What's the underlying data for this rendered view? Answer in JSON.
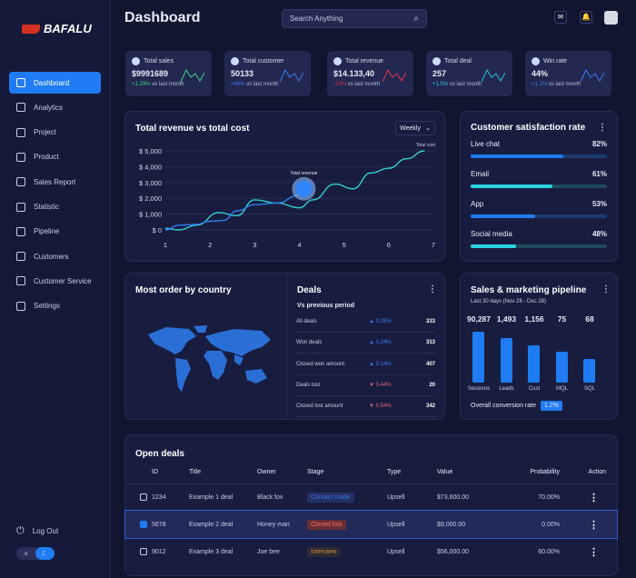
{
  "brand": "BAFALU",
  "sidebar": {
    "items": [
      {
        "label": "Dashboard",
        "icon": "home-icon"
      },
      {
        "label": "Analytics",
        "icon": "analytics-icon"
      },
      {
        "label": "Project",
        "icon": "project-icon"
      },
      {
        "label": "Product",
        "icon": "product-icon"
      },
      {
        "label": "Sales Report",
        "icon": "report-icon"
      },
      {
        "label": "Statistic",
        "icon": "statistic-icon"
      },
      {
        "label": "Pipeline",
        "icon": "pipeline-icon"
      },
      {
        "label": "Customers",
        "icon": "customers-icon"
      },
      {
        "label": "Customer Service",
        "icon": "service-icon"
      },
      {
        "label": "Settings",
        "icon": "settings-icon"
      }
    ],
    "logout": "Log Out",
    "theme": "dark"
  },
  "header": {
    "title": "Dashboard",
    "search_placeholder": "Search Anything"
  },
  "stats": [
    {
      "label": "Total sales",
      "value": "$9991689",
      "change": "+1.29%",
      "suffix": "vs last month",
      "color": "#3ecf8e"
    },
    {
      "label": "Total customer",
      "value": "50133",
      "change": "+45%",
      "suffix": "vs last month",
      "color": "#3b7bf0"
    },
    {
      "label": "Total revenue",
      "value": "$14.133,40",
      "change": "-10%",
      "suffix": "vs last month",
      "color": "#e0344a"
    },
    {
      "label": "Total deal",
      "value": "257",
      "change": "+1.5%",
      "suffix": "vs last month",
      "color": "#2bc6d6"
    },
    {
      "label": "Win rate",
      "value": "44%",
      "change": "+1.2%",
      "suffix": "vs last month",
      "color": "#3b7bf0"
    }
  ],
  "chart_data": {
    "type": "line",
    "title": "Total revenue vs total cost",
    "period": "Weekly",
    "ylim": [
      0,
      5000
    ],
    "yticks": [
      "$ 0",
      "$ 1,000",
      "$ 2,000",
      "$ 3,000",
      "$ 4,000",
      "$ 5,000"
    ],
    "xticks": [
      "1",
      "2",
      "3",
      "4",
      "5",
      "6",
      "7"
    ],
    "series": [
      {
        "name": "Total revenue",
        "color": "#2f7ff0",
        "x": [
          1,
          1.3,
          1.7,
          2,
          2.3,
          2.6,
          3,
          3.5,
          4,
          4.1
        ],
        "y": [
          0,
          300,
          350,
          550,
          600,
          1200,
          1600,
          1700,
          2200,
          2600
        ]
      },
      {
        "name": "Total cost",
        "color": "#35d0d0",
        "x": [
          1,
          1.3,
          1.7,
          2.2,
          2.6,
          3,
          3.5,
          4,
          4.3,
          4.8,
          5.2,
          5.6,
          6,
          6.4,
          6.8
        ],
        "y": [
          100,
          0,
          300,
          1100,
          900,
          1900,
          1700,
          1400,
          1900,
          2900,
          2600,
          3600,
          3900,
          4500,
          5000
        ]
      }
    ]
  },
  "satisfaction": {
    "title": "Customer satisfaction rate",
    "items": [
      {
        "label": "Live chat",
        "value": "82%",
        "fill": 0.68,
        "color": "#1f7cf2"
      },
      {
        "label": "Email",
        "value": "61%",
        "fill": 0.6,
        "color": "#2ad4e0"
      },
      {
        "label": "App",
        "value": "53%",
        "fill": 0.47,
        "color": "#1f7cf2"
      },
      {
        "label": "Social media",
        "value": "48%",
        "fill": 0.33,
        "color": "#2ad4e0"
      }
    ]
  },
  "map": {
    "title": "Most order by country"
  },
  "deals": {
    "title": "Deals",
    "subtitle": "Vs previous period",
    "rows": [
      {
        "label": "All deals",
        "change": "0.35%",
        "dir": "up",
        "value": "333"
      },
      {
        "label": "Won deals",
        "change": "0.24%",
        "dir": "up",
        "value": "313"
      },
      {
        "label": "Closed won amount",
        "change": "0.14%",
        "dir": "up",
        "value": "407"
      },
      {
        "label": "Deals lost",
        "change": "0.44%",
        "dir": "down",
        "value": "20"
      },
      {
        "label": "Closed lost amount",
        "change": "0.54%",
        "dir": "down",
        "value": "342"
      }
    ]
  },
  "pipeline": {
    "title": "Sales & marketing pipeline",
    "subtitle": "Last 30 days (Nov 28 - Dec 28)",
    "stages": [
      {
        "label": "Sessions",
        "value": "90,287",
        "height": 1.0
      },
      {
        "label": "Leads",
        "value": "1,493",
        "height": 0.87
      },
      {
        "label": "Cust",
        "value": "1,156",
        "height": 0.73
      },
      {
        "label": "MQL",
        "value": "75",
        "height": 0.6
      },
      {
        "label": "SQL",
        "value": "68",
        "height": 0.46
      }
    ],
    "conversion_label": "Overall conversion rate",
    "conversion": "1.2%"
  },
  "open_deals": {
    "title": "Open deals",
    "columns": [
      "ID",
      "Title",
      "Owner",
      "Stage",
      "Type",
      "Value",
      "Probability",
      "Action"
    ],
    "rows": [
      {
        "id": "1234",
        "title": "Example 1 deal",
        "owner": "Black fox",
        "stage": "Contact made",
        "stage_color": "#3b6fd8",
        "stage_bg": "#253066",
        "type": "Upsell",
        "value": "$73,600.00",
        "prob": "70.00%",
        "checked": false
      },
      {
        "id": "5678",
        "title": "Example 2 deal",
        "owner": "Honey man",
        "stage": "Closed lost",
        "stage_color": "#f07060",
        "stage_bg": "#6a2e35",
        "type": "Upsell",
        "value": "$9,000.00",
        "prob": "0.00%",
        "checked": true
      },
      {
        "id": "9012",
        "title": "Example 3 deal",
        "owner": "Joe bee",
        "stage": "Interview",
        "stage_color": "#d88a3a",
        "stage_bg": "#2c2a35",
        "type": "Upsell",
        "value": "$56,000.00",
        "prob": "60.00%",
        "checked": false
      }
    ]
  }
}
